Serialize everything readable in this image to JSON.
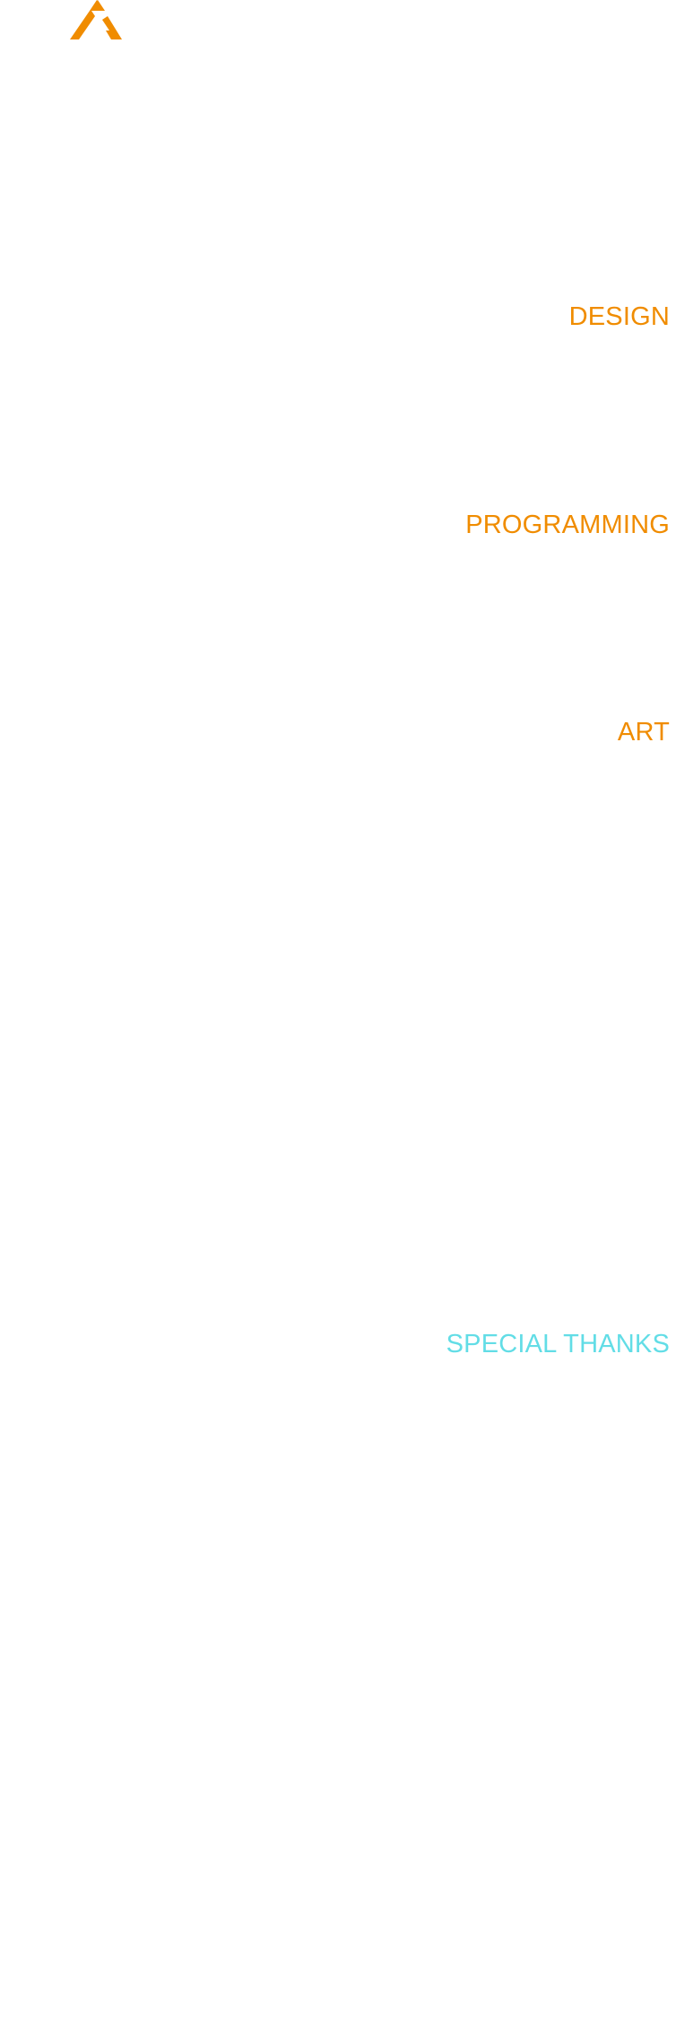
{
  "brand": {
    "logo_icon": "stylized-a-logo-icon",
    "accent_color": "#f08c00"
  },
  "credits": {
    "sections": [
      {
        "title": "DESIGN",
        "color": "#f08c00"
      },
      {
        "title": "PROGRAMMING",
        "color": "#f08c00"
      },
      {
        "title": "ART",
        "color": "#f08c00"
      },
      {
        "title": "SPECIAL THANKS",
        "color": "#62dde6"
      }
    ]
  }
}
